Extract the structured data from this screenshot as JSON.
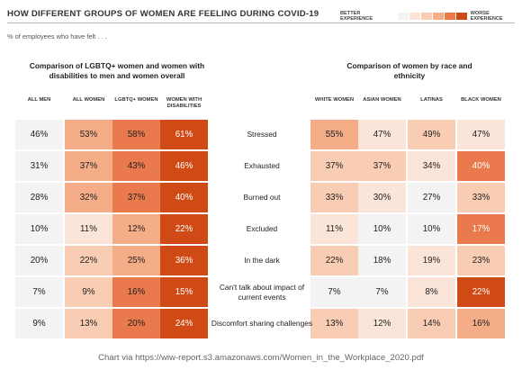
{
  "header": {
    "title": "HOW DIFFERENT GROUPS OF WOMEN ARE FEELING DURING COVID-19",
    "subtitle": "% of employees who have felt . . ."
  },
  "legend": {
    "better_label": "BETTER EXPERIENCE",
    "worse_label": "WORSE EXPERIENCE",
    "colors": [
      "#f3f3f3",
      "#fbe4d8",
      "#f9cdb4",
      "#f5ad88",
      "#ea7a4d",
      "#d04a15"
    ]
  },
  "source": "Chart via https://wiw-report.s3.amazonaws.com/Women_in_the_Workplace_2020.pdf",
  "chart_data": [
    {
      "type": "table",
      "title": "Comparison of LGBTQ+ women and women with disabilities to men and women overall",
      "columns": [
        "ALL MEN",
        "ALL WOMEN",
        "LGBTQ+ WOMEN",
        "WOMEN WITH DISABILITIES"
      ],
      "rows": [
        "Stressed",
        "Exhausted",
        "Burned out",
        "Excluded",
        "In the dark",
        "Can't talk about impact of current events",
        "Discomfort sharing challenges"
      ],
      "values": [
        [
          46,
          53,
          58,
          61
        ],
        [
          31,
          37,
          43,
          46
        ],
        [
          28,
          32,
          37,
          40
        ],
        [
          10,
          11,
          12,
          22
        ],
        [
          20,
          22,
          25,
          36
        ],
        [
          7,
          9,
          16,
          15
        ],
        [
          9,
          13,
          20,
          24
        ]
      ],
      "levels": [
        [
          0,
          3,
          4,
          5
        ],
        [
          0,
          3,
          4,
          5
        ],
        [
          0,
          3,
          4,
          5
        ],
        [
          0,
          1,
          3,
          5
        ],
        [
          0,
          2,
          3,
          5
        ],
        [
          0,
          2,
          4,
          5
        ],
        [
          0,
          2,
          4,
          5
        ]
      ]
    },
    {
      "type": "table",
      "title": "Comparison of women by race and ethnicity",
      "columns": [
        "WHITE WOMEN",
        "ASIAN WOMEN",
        "LATINAS",
        "BLACK WOMEN"
      ],
      "rows": [
        "Stressed",
        "Exhausted",
        "Burned out",
        "Excluded",
        "In the dark",
        "Can't talk about impact of current events",
        "Discomfort sharing challenges"
      ],
      "values": [
        [
          55,
          47,
          49,
          47
        ],
        [
          37,
          37,
          34,
          40
        ],
        [
          33,
          30,
          27,
          33
        ],
        [
          11,
          10,
          10,
          17
        ],
        [
          22,
          18,
          19,
          23
        ],
        [
          7,
          7,
          8,
          22
        ],
        [
          13,
          12,
          14,
          16
        ]
      ],
      "levels": [
        [
          3,
          1,
          2,
          1
        ],
        [
          2,
          2,
          1,
          4
        ],
        [
          2,
          1,
          0,
          2
        ],
        [
          1,
          0,
          0,
          4
        ],
        [
          2,
          0,
          1,
          2
        ],
        [
          0,
          0,
          1,
          5
        ],
        [
          2,
          1,
          2,
          3
        ]
      ]
    }
  ]
}
